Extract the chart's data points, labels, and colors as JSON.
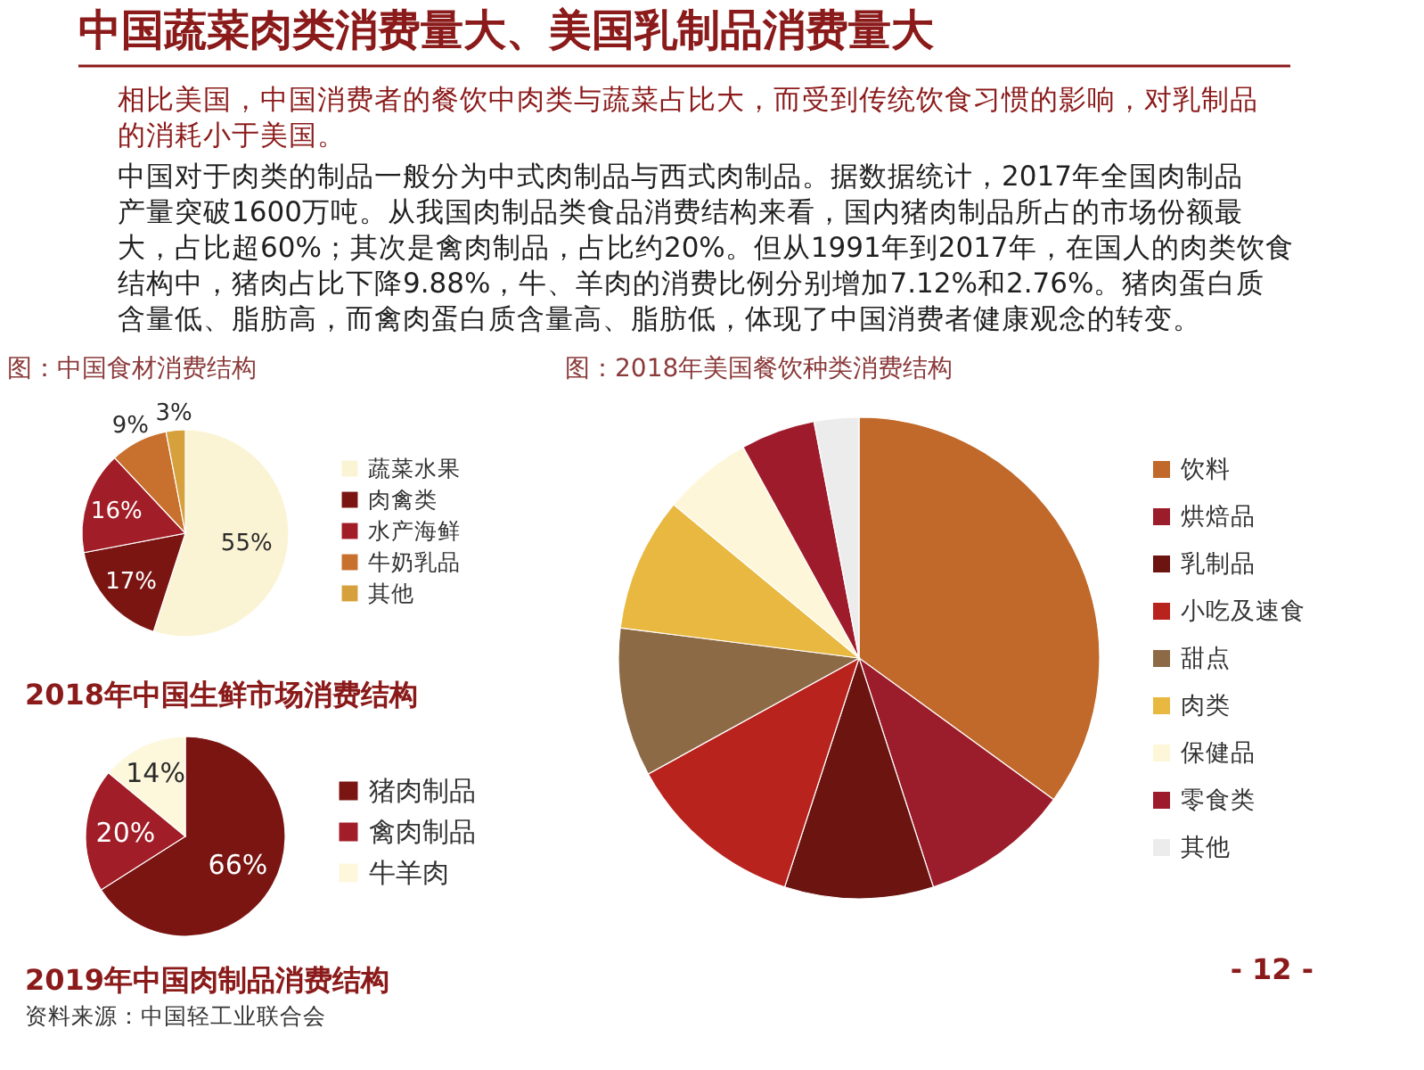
{
  "chart_data": [
    {
      "type": "other",
      "title": "中国蔬菜肉类消费量大、美国乳制品消费量大",
      "annotations": [
        "相比美国，中国消费者的餐饮中肉类与蔬菜占比大，而受到传统饮食习惯的影响，对乳制品的消耗小于美国。",
        "中国对于肉类的制品一般分为中式肉制品与西式肉制品。据数据统计，2017年全国肉制品产量突破1600万吨。从我国肉制品类食品消费结构来看，国内猪肉制品所占的市场份额最大，占比超60%；其次是禽肉制品，占比约20%。但从1991年到2017年，在国人的肉类饮食结构中，猪肉占比下降9.88%，牛、羊肉的消费比例分别增加7.12%和2.76%。猪肉蛋白质含量低、脂肪高，而禽肉蛋白质含量高、脂肪低，体现了中国消费者健康观念的转变。"
      ]
    },
    {
      "type": "pie",
      "title": "图：中国食材消费结构",
      "categories": [
        "蔬菜水果",
        "肉禽类",
        "水产海鲜",
        "牛奶乳品",
        "其他"
      ],
      "values": [
        55,
        17,
        16,
        9,
        3
      ],
      "colors": [
        "#fbf4d4",
        "#7a1512",
        "#a11d27",
        "#c8702e",
        "#d6a13c"
      ],
      "value_labels": [
        "55%",
        "17%",
        "16%",
        "9%",
        "3%"
      ],
      "legend": "right",
      "annotations": [
        "2018年中国生鲜市场消费结构"
      ]
    },
    {
      "type": "pie",
      "categories": [
        "猪肉制品",
        "禽肉制品",
        "牛羊肉"
      ],
      "values": [
        66,
        20,
        14
      ],
      "colors": [
        "#7a1512",
        "#a11d27",
        "#fdf7dc"
      ],
      "value_labels": [
        "66%",
        "20%",
        "14%"
      ],
      "legend": "right",
      "annotations": [
        "2019年中国肉制品消费结构",
        "资料来源：中国轻工业联合会"
      ]
    },
    {
      "type": "pie",
      "title": "图：2018年美国餐饮种类消费结构",
      "categories": [
        "饮料",
        "烘焙品",
        "乳制品",
        "小吃及速食",
        "甜点",
        "肉类",
        "保健品",
        "零食类",
        "其他"
      ],
      "values": [
        35,
        10,
        10,
        12,
        10,
        9,
        6,
        5,
        3
      ],
      "colors": [
        "#c0692a",
        "#9b1c2a",
        "#6b1410",
        "#b8231e",
        "#8c6a45",
        "#e8b840",
        "#fdf6d8",
        "#9e1b2c",
        "#ececec"
      ],
      "legend": "right",
      "annotations": [
        "- 12 -"
      ]
    }
  ]
}
